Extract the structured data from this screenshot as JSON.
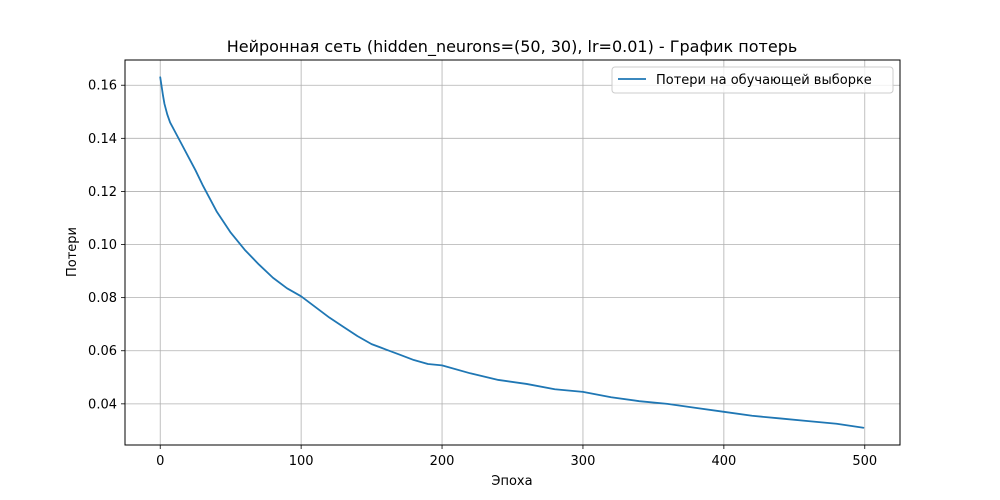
{
  "chart_data": {
    "type": "line",
    "title": "Нейронная сеть (hidden_neurons=(50, 30), lr=0.01) - График потерь",
    "xlabel": "Эпоха",
    "ylabel": "Потери",
    "xlim": [
      -25,
      525
    ],
    "ylim": [
      0.0245,
      0.1695
    ],
    "x_ticks": [
      0,
      100,
      200,
      300,
      400,
      500
    ],
    "y_ticks": [
      0.04,
      0.06,
      0.08,
      0.1,
      0.12,
      0.14,
      0.16
    ],
    "x_tick_labels": [
      "0",
      "100",
      "200",
      "300",
      "400",
      "500"
    ],
    "y_tick_labels": [
      "0.04",
      "0.06",
      "0.08",
      "0.10",
      "0.12",
      "0.14",
      "0.16"
    ],
    "grid": true,
    "legend_position": "top-right",
    "series": [
      {
        "name": "Потери на обучающей выборке",
        "color": "#1f77b4",
        "x": [
          0,
          1,
          2,
          3,
          5,
          7,
          10,
          15,
          20,
          25,
          30,
          35,
          40,
          45,
          50,
          60,
          70,
          80,
          90,
          100,
          110,
          120,
          130,
          140,
          150,
          160,
          170,
          180,
          190,
          200,
          220,
          240,
          260,
          280,
          300,
          320,
          340,
          360,
          380,
          400,
          420,
          440,
          460,
          480,
          499
        ],
        "values": [
          0.163,
          0.1595,
          0.156,
          0.153,
          0.149,
          0.146,
          0.143,
          0.138,
          0.133,
          0.128,
          0.1225,
          0.1175,
          0.1125,
          0.1085,
          0.1045,
          0.098,
          0.0925,
          0.0875,
          0.0835,
          0.0805,
          0.0765,
          0.0725,
          0.069,
          0.0655,
          0.0625,
          0.0605,
          0.0585,
          0.0565,
          0.055,
          0.0545,
          0.0515,
          0.049,
          0.0475,
          0.0455,
          0.0445,
          0.0425,
          0.041,
          0.04,
          0.0385,
          0.037,
          0.0355,
          0.0345,
          0.0335,
          0.0325,
          0.031
        ]
      }
    ]
  }
}
